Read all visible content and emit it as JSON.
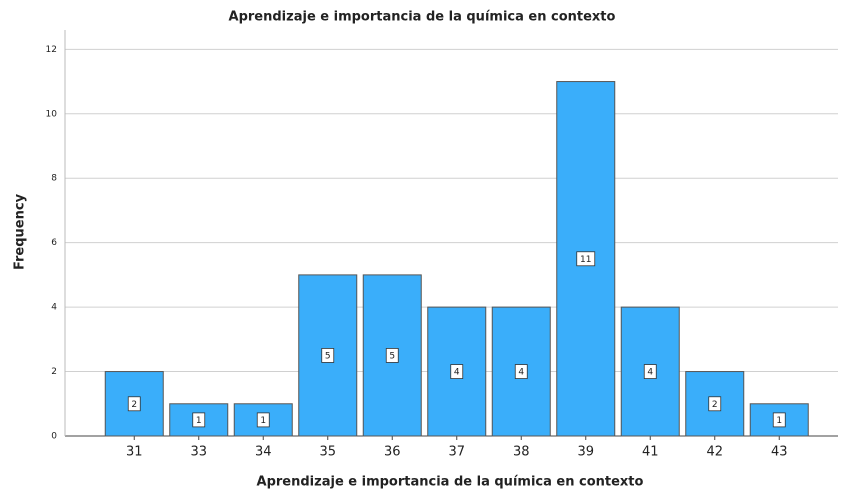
{
  "chart_data": {
    "type": "bar",
    "title": "Aprendizaje e importancia de la química en contexto",
    "x_label": "Aprendizaje e importancia de la química en contexto",
    "y_label": "Frequency",
    "categories": [
      "31",
      "33",
      "34",
      "35",
      "36",
      "37",
      "38",
      "39",
      "41",
      "42",
      "43"
    ],
    "values": [
      2,
      1,
      1,
      5,
      5,
      4,
      4,
      11,
      4,
      2,
      1
    ],
    "color": "#3aaefa",
    "ylim": [
      0,
      12.6
    ],
    "yticks": [
      0,
      2,
      4,
      6,
      8,
      10,
      12
    ],
    "grid": true
  }
}
